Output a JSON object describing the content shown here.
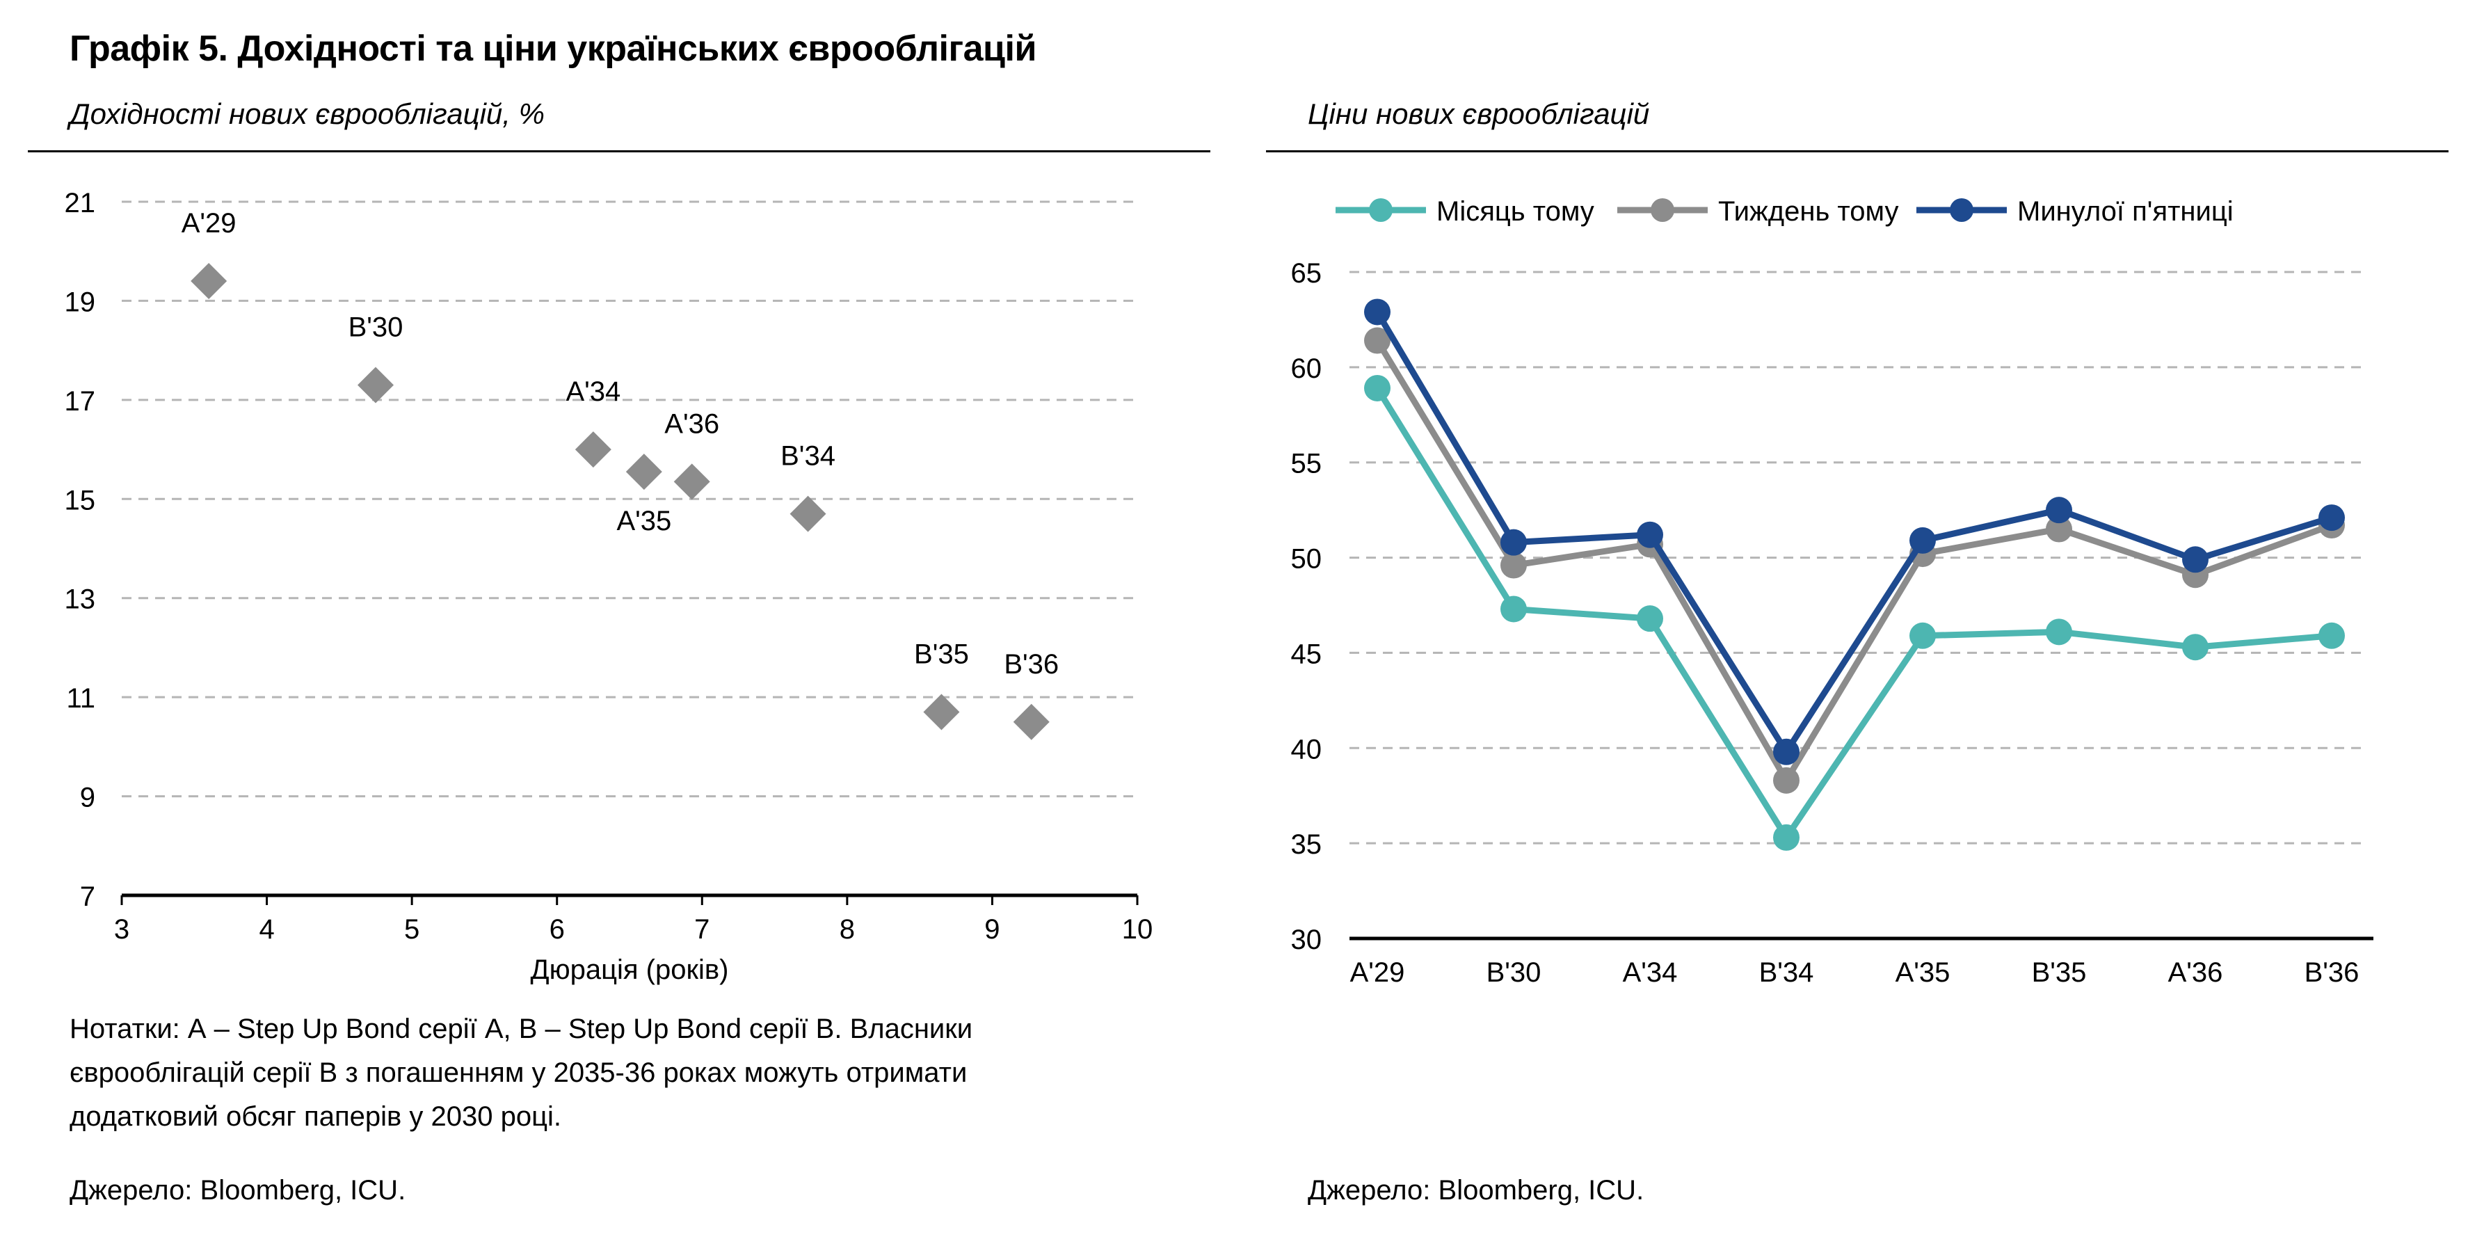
{
  "figure": {
    "title": "Графік 5. Дохідності та ціни українських єврооблігацій"
  },
  "left": {
    "subtitle": "Дохідності нових єврооблігацій, %",
    "notes": [
      "Нотатки: А – Step Up Bond серії А, В – Step Up Bond серії В. Власники",
      "єврооблігацій серії В з погашенням у 2035-36 роках можуть отримати",
      "додатковий обсяг паперів у 2030 році."
    ],
    "source": "Джерело: Bloomberg, ICU."
  },
  "right": {
    "subtitle": "Ціни нових єврооблігацій",
    "source": "Джерело: Bloomberg, ICU."
  },
  "chart_data": [
    {
      "type": "scatter",
      "title": "",
      "xlabel": "Дюрація (років)",
      "ylabel": "",
      "xlim": [
        3,
        10
      ],
      "ylim": [
        7,
        21
      ],
      "x_ticks": [
        "3",
        "4",
        "5",
        "6",
        "7",
        "8",
        "9",
        "10"
      ],
      "y_ticks": [
        "7",
        "9",
        "11",
        "13",
        "15",
        "17",
        "19",
        "21"
      ],
      "grid": "horizontal dashed",
      "marker_color": "#8c8c8c",
      "points": [
        {
          "label": "A'29",
          "x": 3.6,
          "y": 19.4
        },
        {
          "label": "B'30",
          "x": 4.75,
          "y": 17.3
        },
        {
          "label": "A'34",
          "x": 6.25,
          "y": 16.0
        },
        {
          "label": "A'35",
          "x": 6.6,
          "y": 15.55
        },
        {
          "label": "A'36",
          "x": 6.93,
          "y": 15.35
        },
        {
          "label": "B'34",
          "x": 7.73,
          "y": 14.7
        },
        {
          "label": "B'35",
          "x": 8.65,
          "y": 10.7
        },
        {
          "label": "B'36",
          "x": 9.27,
          "y": 10.5
        }
      ]
    },
    {
      "type": "line",
      "title": "",
      "xlabel": "",
      "ylabel": "",
      "categories": [
        "A'29",
        "B'30",
        "A'34",
        "B'34",
        "A'35",
        "B'35",
        "A'36",
        "B'36"
      ],
      "ylim": [
        30,
        65
      ],
      "y_ticks": [
        "30",
        "35",
        "40",
        "45",
        "50",
        "55",
        "60",
        "65"
      ],
      "grid": "horizontal dashed",
      "legend": "top",
      "series": [
        {
          "name": "Місяць тому",
          "color": "#4db6b1",
          "values": [
            58.9,
            47.3,
            46.8,
            35.3,
            45.9,
            46.1,
            45.3,
            45.9
          ]
        },
        {
          "name": "Тиждень тому",
          "color": "#8c8c8c",
          "values": [
            61.4,
            49.6,
            50.7,
            38.3,
            50.2,
            51.5,
            49.1,
            51.7
          ]
        },
        {
          "name": "Минулої п'ятниці",
          "color": "#1e4a8f",
          "values": [
            62.9,
            50.8,
            51.2,
            39.8,
            50.9,
            52.5,
            49.9,
            52.1
          ]
        }
      ]
    }
  ]
}
